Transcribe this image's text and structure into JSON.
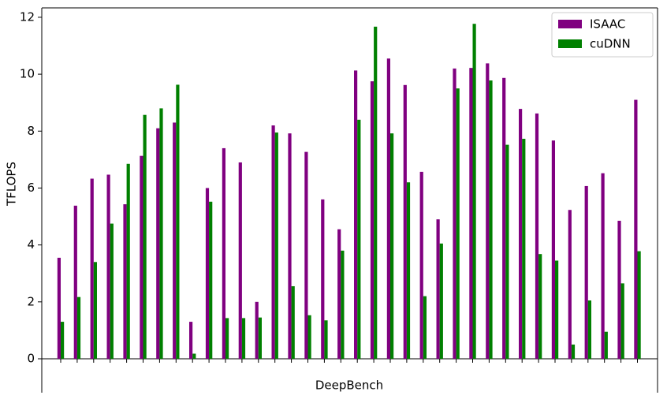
{
  "chart_data": {
    "type": "bar",
    "xlabel": "DeepBench",
    "ylabel": "TFLOPS",
    "categories": [
      null,
      null,
      null,
      null,
      null,
      null,
      null,
      null,
      null,
      null,
      null,
      null,
      null,
      null,
      null,
      null,
      null,
      null,
      null,
      null,
      null,
      null,
      null,
      null,
      null,
      null,
      null,
      null,
      null,
      null,
      null,
      null,
      null,
      null,
      null,
      null
    ],
    "series": [
      {
        "name": "ISAAC",
        "color": "#800080",
        "values": [
          3.55,
          5.38,
          6.33,
          6.47,
          5.43,
          7.13,
          8.1,
          8.3,
          1.3,
          6.0,
          7.4,
          6.9,
          2.0,
          8.2,
          7.92,
          7.27,
          5.6,
          4.55,
          10.13,
          9.75,
          10.55,
          9.62,
          6.57,
          4.9,
          10.2,
          10.22,
          10.38,
          9.87,
          8.78,
          8.62,
          7.67,
          5.23,
          6.07,
          6.52,
          4.85,
          9.1
        ]
      },
      {
        "name": "cuDNN",
        "color": "#008000",
        "values": [
          1.3,
          2.17,
          3.4,
          4.75,
          6.85,
          8.57,
          8.8,
          9.63,
          0.18,
          5.52,
          1.43,
          1.43,
          1.45,
          7.95,
          2.55,
          1.53,
          1.35,
          3.8,
          8.4,
          11.67,
          7.92,
          6.2,
          2.2,
          4.05,
          9.5,
          11.77,
          9.78,
          7.52,
          7.73,
          3.68,
          3.45,
          0.5,
          2.05,
          0.95,
          2.65,
          3.78
        ]
      }
    ],
    "ylim": [
      0,
      12.33
    ],
    "yticks": [
      0,
      2,
      4,
      6,
      8,
      10,
      12
    ],
    "legend": "upper right"
  }
}
